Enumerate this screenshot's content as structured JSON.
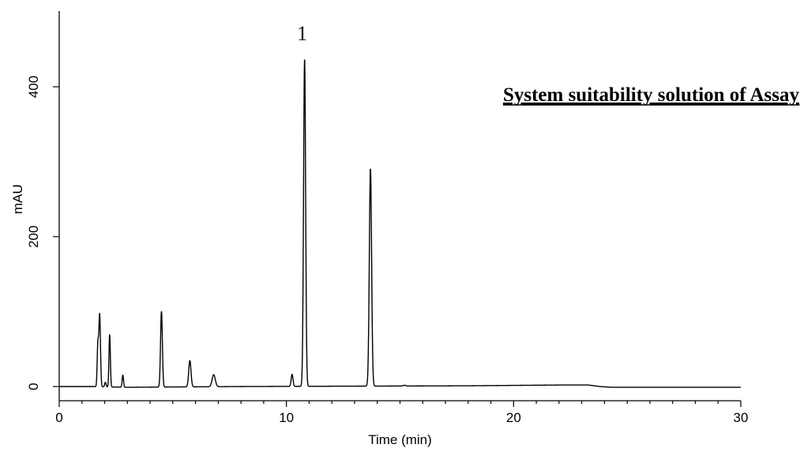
{
  "chart_data": {
    "type": "line",
    "xlabel": "Time (min)",
    "ylabel": "mAU",
    "xlim": [
      0,
      30
    ],
    "ylim": [
      -20,
      500
    ],
    "x_ticks": [
      0,
      10,
      20,
      30
    ],
    "x_tick_labels": [
      "0",
      "10",
      "20",
      "30"
    ],
    "y_ticks": [
      0,
      200,
      400
    ],
    "y_tick_labels": [
      "0",
      "200",
      "400"
    ],
    "x_minor_step": 1,
    "grid": false,
    "legend": "none",
    "annotation_title": "System suitability solution of Assay",
    "peak_labels": [
      {
        "text": "1",
        "x": 10.8,
        "y": 436
      }
    ],
    "peaks": [
      {
        "rt": 1.7,
        "height": 55,
        "width": 0.03
      },
      {
        "rt": 1.78,
        "height": 96,
        "width": 0.035
      },
      {
        "rt": 2.03,
        "height": 6,
        "width": 0.03
      },
      {
        "rt": 2.22,
        "height": 70,
        "width": 0.03
      },
      {
        "rt": 2.8,
        "height": 16,
        "width": 0.03
      },
      {
        "rt": 4.5,
        "height": 101,
        "width": 0.04
      },
      {
        "rt": 5.75,
        "height": 35,
        "width": 0.05
      },
      {
        "rt": 6.8,
        "height": 16,
        "width": 0.07
      },
      {
        "rt": 10.25,
        "height": 16,
        "width": 0.04
      },
      {
        "rt": 10.8,
        "height": 436,
        "width": 0.045
      },
      {
        "rt": 13.7,
        "height": 290,
        "width": 0.05
      },
      {
        "rt": 15.2,
        "height": 1,
        "width": 0.05
      }
    ],
    "baseline": [
      {
        "x": 0.0,
        "y": 0
      },
      {
        "x": 1.5,
        "y": 0
      },
      {
        "x": 3.0,
        "y": -1
      },
      {
        "x": 8.0,
        "y": 0
      },
      {
        "x": 18.0,
        "y": 1
      },
      {
        "x": 22.0,
        "y": 2
      },
      {
        "x": 23.3,
        "y": 2
      },
      {
        "x": 23.8,
        "y": 0
      },
      {
        "x": 24.3,
        "y": -1
      },
      {
        "x": 30.0,
        "y": -1
      }
    ]
  }
}
